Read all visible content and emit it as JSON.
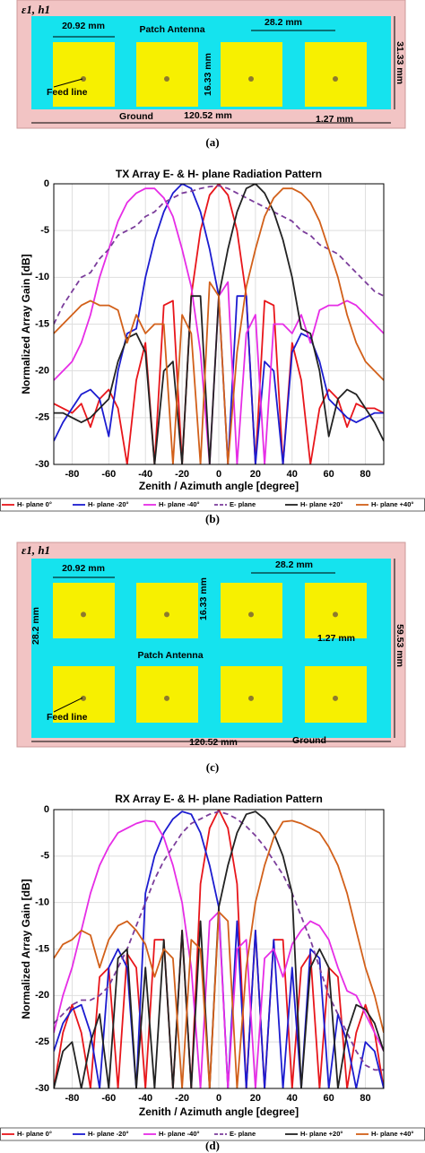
{
  "captions": [
    "(a)",
    "(b)",
    "(c)",
    "(d)"
  ],
  "diagrams": [
    {
      "material": "ε1, h1",
      "patch_width": "20.92 mm",
      "title": "Patch Antenna",
      "spacing": "28.2 mm",
      "patch_height": "16.33 mm",
      "board_height": "31.33 mm",
      "feed": "Feed line",
      "feed_width": "1.27 mm",
      "ground": "Ground",
      "board_width": "120.52 mm"
    },
    {
      "material": "ε1, h1",
      "patch_width": "20.92 mm",
      "title": "Patch Antenna",
      "spacing": "28.2 mm",
      "vertical_spacing": "28.2 mm",
      "patch_height": "16.33 mm",
      "board_height": "59.53 mm",
      "feed": "Feed line",
      "feed_width": "1.27 mm",
      "ground": "Ground",
      "board_width": "120.52 mm"
    }
  ],
  "chart_data": [
    {
      "type": "line",
      "title": "TX Array E- & H- plane Radiation Pattern",
      "xlabel": "Zenith / Azimuth angle [degree]",
      "ylabel": "Normalized Array Gain [dB]",
      "xlim": [
        -90,
        90
      ],
      "ylim": [
        -30,
        0
      ],
      "xticks": [
        -80,
        -60,
        -40,
        -20,
        0,
        20,
        40,
        60,
        80
      ],
      "yticks": [
        0,
        -5,
        -10,
        -15,
        -20,
        -25,
        -30
      ],
      "grid": true,
      "x": [
        -90,
        -85,
        -80,
        -75,
        -70,
        -65,
        -60,
        -55,
        -50,
        -45,
        -40,
        -35,
        -30,
        -25,
        -20,
        -15,
        -10,
        -5,
        0,
        5,
        10,
        15,
        20,
        25,
        30,
        35,
        40,
        45,
        50,
        55,
        60,
        65,
        70,
        75,
        80,
        85,
        90
      ],
      "series": [
        {
          "name": "H- plane 0°",
          "color": "#e8161b",
          "dash": false,
          "values": [
            -23.5,
            -24,
            -24.5,
            -23.5,
            -26,
            -23,
            -22,
            -24,
            -30,
            -21,
            -17,
            -30,
            -13,
            -12.5,
            -30,
            -12,
            -5,
            -1.2,
            0,
            -1.2,
            -5,
            -12,
            -30,
            -12.5,
            -13,
            -30,
            -17,
            -21,
            -30,
            -24,
            -22,
            -23,
            -26,
            -23.5,
            -24,
            -24,
            -24.5
          ]
        },
        {
          "name": "H- plane -20°",
          "color": "#1c1cd0",
          "dash": false,
          "values": [
            -27.5,
            -25.5,
            -24,
            -22.5,
            -22,
            -23,
            -27,
            -20,
            -16,
            -15.5,
            -10,
            -6,
            -3,
            -1,
            0,
            -0.5,
            -3,
            -7,
            -12,
            -30,
            -12,
            -12,
            -30,
            -19,
            -20,
            -30,
            -18,
            -16,
            -16.5,
            -19,
            -23,
            -24,
            -25,
            -25.5,
            -25,
            -24.5,
            -24.5
          ]
        },
        {
          "name": "H- plane -40°",
          "color": "#e62de6",
          "dash": false,
          "values": [
            -21,
            -20,
            -19,
            -17,
            -14,
            -10,
            -7,
            -4,
            -2,
            -1,
            -0.5,
            -0.5,
            -1.5,
            -3.5,
            -7,
            -11,
            -18,
            -30,
            -12,
            -10.5,
            -30,
            -16,
            -14,
            -30,
            -15,
            -15,
            -16,
            -14,
            -17,
            -13.5,
            -13,
            -13,
            -12.5,
            -13,
            -14,
            -15,
            -16
          ]
        },
        {
          "name": "E- plane",
          "color": "#7b3d9b",
          "dash": true,
          "values": [
            -15,
            -13,
            -11.5,
            -10,
            -9.5,
            -8,
            -7,
            -5.5,
            -5,
            -4.5,
            -3.5,
            -3,
            -2,
            -1.5,
            -1,
            -0.8,
            -0.5,
            -0.3,
            -0.2,
            -0.5,
            -1,
            -1.5,
            -2,
            -2.5,
            -3,
            -3.5,
            -4,
            -5,
            -5.5,
            -6.5,
            -7,
            -7.5,
            -8.5,
            -9.5,
            -10.5,
            -11.5,
            -12
          ]
        },
        {
          "name": "H- plane +20°",
          "color": "#222222",
          "dash": false,
          "values": [
            -24.5,
            -24.5,
            -25,
            -25.5,
            -25,
            -24,
            -23,
            -19,
            -16.5,
            -16,
            -18,
            -30,
            -20,
            -19,
            -30,
            -12,
            -12,
            -30,
            -12,
            -7,
            -3,
            -0.5,
            0,
            -1,
            -3,
            -6,
            -10,
            -15.5,
            -16,
            -20,
            -27,
            -23,
            -22,
            -22.5,
            -24,
            -25.5,
            -27.5
          ]
        },
        {
          "name": "H- plane +40°",
          "color": "#d2601a",
          "dash": false,
          "values": [
            -16,
            -15,
            -14,
            -13,
            -12.5,
            -13,
            -13,
            -13.5,
            -17,
            -14,
            -16,
            -15,
            -15,
            -30,
            -14,
            -16,
            -30,
            -10.5,
            -12,
            -30,
            -18,
            -11,
            -7,
            -3.5,
            -1.5,
            -0.5,
            -0.5,
            -1,
            -2,
            -4,
            -7,
            -10,
            -14,
            -17,
            -19,
            -20,
            -21
          ]
        }
      ]
    },
    {
      "type": "line",
      "title": "RX Array E- & H- plane Radiation Pattern",
      "xlabel": "Zenith / Azimuth angle [degree]",
      "ylabel": "Normalized Array Gain [dB]",
      "xlim": [
        -90,
        90
      ],
      "ylim": [
        -30,
        0
      ],
      "xticks": [
        -80,
        -60,
        -40,
        -20,
        0,
        20,
        40,
        60,
        80
      ],
      "yticks": [
        0,
        -5,
        -10,
        -15,
        -20,
        -25,
        -30
      ],
      "grid": true,
      "x": [
        -90,
        -85,
        -80,
        -75,
        -70,
        -65,
        -60,
        -55,
        -50,
        -45,
        -40,
        -35,
        -30,
        -25,
        -20,
        -15,
        -10,
        -5,
        0,
        5,
        10,
        15,
        20,
        25,
        30,
        35,
        40,
        45,
        50,
        55,
        60,
        65,
        70,
        75,
        80,
        85,
        90
      ],
      "series": [
        {
          "name": "H- plane 0°",
          "color": "#e8161b",
          "dash": false,
          "values": [
            -30,
            -24,
            -21,
            -24,
            -30,
            -18,
            -17,
            -30,
            -15.5,
            -17,
            -30,
            -14,
            -14,
            -30,
            -13,
            -30,
            -8,
            -2,
            0,
            -2,
            -8,
            -30,
            -13,
            -30,
            -14,
            -14,
            -30,
            -17,
            -15.5,
            -30,
            -17,
            -18,
            -30,
            -24,
            -21,
            -24,
            -30
          ]
        },
        {
          "name": "H- plane -20°",
          "color": "#1c1cd0",
          "dash": false,
          "values": [
            -26,
            -23,
            -21.5,
            -21,
            -24,
            -30,
            -17,
            -15,
            -17,
            -30,
            -9,
            -5,
            -2.5,
            -1,
            -0.2,
            -0.5,
            -2.5,
            -6,
            -10.5,
            -30,
            -12,
            -30,
            -13,
            -30,
            -14,
            -30,
            -17,
            -30,
            -15,
            -16,
            -30,
            -22,
            -25,
            -30,
            -25,
            -26,
            -30
          ]
        },
        {
          "name": "H- plane -40°",
          "color": "#e62de6",
          "dash": false,
          "values": [
            -24,
            -20,
            -17,
            -13,
            -9,
            -6,
            -4,
            -2.5,
            -2,
            -1.5,
            -1.2,
            -1.3,
            -3,
            -6,
            -10,
            -17,
            -30,
            -12,
            -11,
            -30,
            -15,
            -14,
            -30,
            -16,
            -15,
            -18,
            -14.5,
            -13,
            -12,
            -12.5,
            -14,
            -17,
            -19.5,
            -20,
            -22,
            -24,
            -26
          ]
        },
        {
          "name": "E- plane",
          "color": "#7b3d9b",
          "dash": true,
          "values": [
            -23,
            -22,
            -21,
            -20.5,
            -20.5,
            -20,
            -19,
            -17,
            -15,
            -12.5,
            -10,
            -7.5,
            -5.5,
            -4,
            -2.5,
            -1.5,
            -1,
            -0.5,
            -0.2,
            -0.5,
            -1,
            -1.8,
            -2.8,
            -4,
            -5.5,
            -7,
            -9,
            -11.5,
            -14,
            -17,
            -20,
            -22,
            -24,
            -26,
            -27.5,
            -28,
            -28
          ]
        },
        {
          "name": "H- plane +20°",
          "color": "#222222",
          "dash": false,
          "values": [
            -30,
            -26,
            -25,
            -30,
            -25,
            -22,
            -30,
            -16,
            -15,
            -30,
            -17,
            -30,
            -14,
            -30,
            -13,
            -30,
            -12,
            -30,
            -10.5,
            -6,
            -2.5,
            -0.5,
            -0.2,
            -1,
            -2.5,
            -5,
            -9,
            -30,
            -17,
            -15,
            -17,
            -30,
            -24,
            -21,
            -21.5,
            -23,
            -26
          ]
        },
        {
          "name": "H- plane +40°",
          "color": "#d2601a",
          "dash": false,
          "values": [
            -16,
            -14.5,
            -14,
            -13,
            -13.5,
            -17,
            -14,
            -12.5,
            -12,
            -13,
            -14.5,
            -18,
            -15,
            -16,
            -30,
            -14,
            -15,
            -30,
            -11,
            -12,
            -30,
            -17,
            -10,
            -6,
            -3,
            -1.3,
            -1.2,
            -1.5,
            -2,
            -2.5,
            -4,
            -6,
            -9,
            -13,
            -17,
            -20,
            -24
          ]
        }
      ]
    }
  ]
}
